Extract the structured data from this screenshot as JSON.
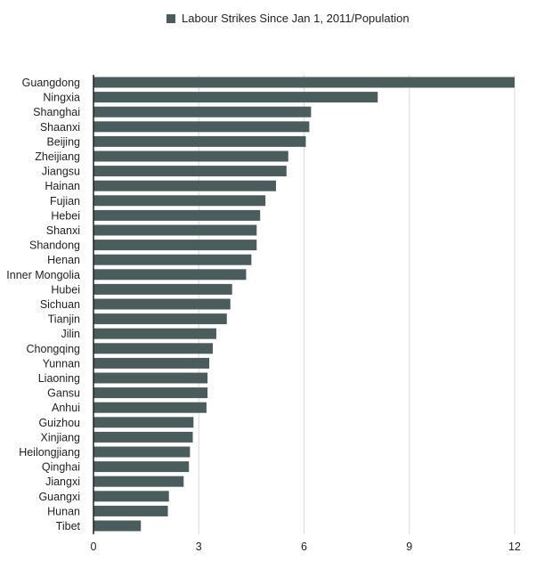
{
  "chart_data": {
    "type": "bar",
    "orientation": "horizontal",
    "title": "",
    "xlabel": "",
    "ylabel": "",
    "xlim": [
      0,
      12
    ],
    "x_ticks": [
      0,
      3,
      6,
      9,
      12
    ],
    "grid": "vertical",
    "legend_position": "top-center",
    "series": [
      {
        "name": "Labour Strikes Since Jan 1, 2011/Population",
        "color": "#4a5c5c",
        "values": [
          12.0,
          8.1,
          6.2,
          6.15,
          6.05,
          5.55,
          5.5,
          5.2,
          4.9,
          4.75,
          4.65,
          4.65,
          4.5,
          4.35,
          3.95,
          3.9,
          3.8,
          3.5,
          3.4,
          3.3,
          3.25,
          3.25,
          3.22,
          2.85,
          2.83,
          2.75,
          2.72,
          2.57,
          2.15,
          2.12,
          1.35
        ]
      }
    ],
    "categories": [
      "Guangdong",
      "Ningxia",
      "Shanghai",
      "Shaanxi",
      "Beijing",
      "Zheijiang",
      "Jiangsu",
      "Hainan",
      "Fujian",
      "Hebei",
      "Shanxi",
      "Shandong",
      "Henan",
      "Inner Mongolia",
      "Hubei",
      "Sichuan",
      "Tianjin",
      "Jilin",
      "Chongqing",
      "Yunnan",
      "Liaoning",
      "Gansu",
      "Anhui",
      "Guizhou",
      "Xinjiang",
      "Heilongjiang",
      "Qinghai",
      "Jiangxi",
      "Guangxi",
      "Hunan",
      "Tibet"
    ]
  }
}
